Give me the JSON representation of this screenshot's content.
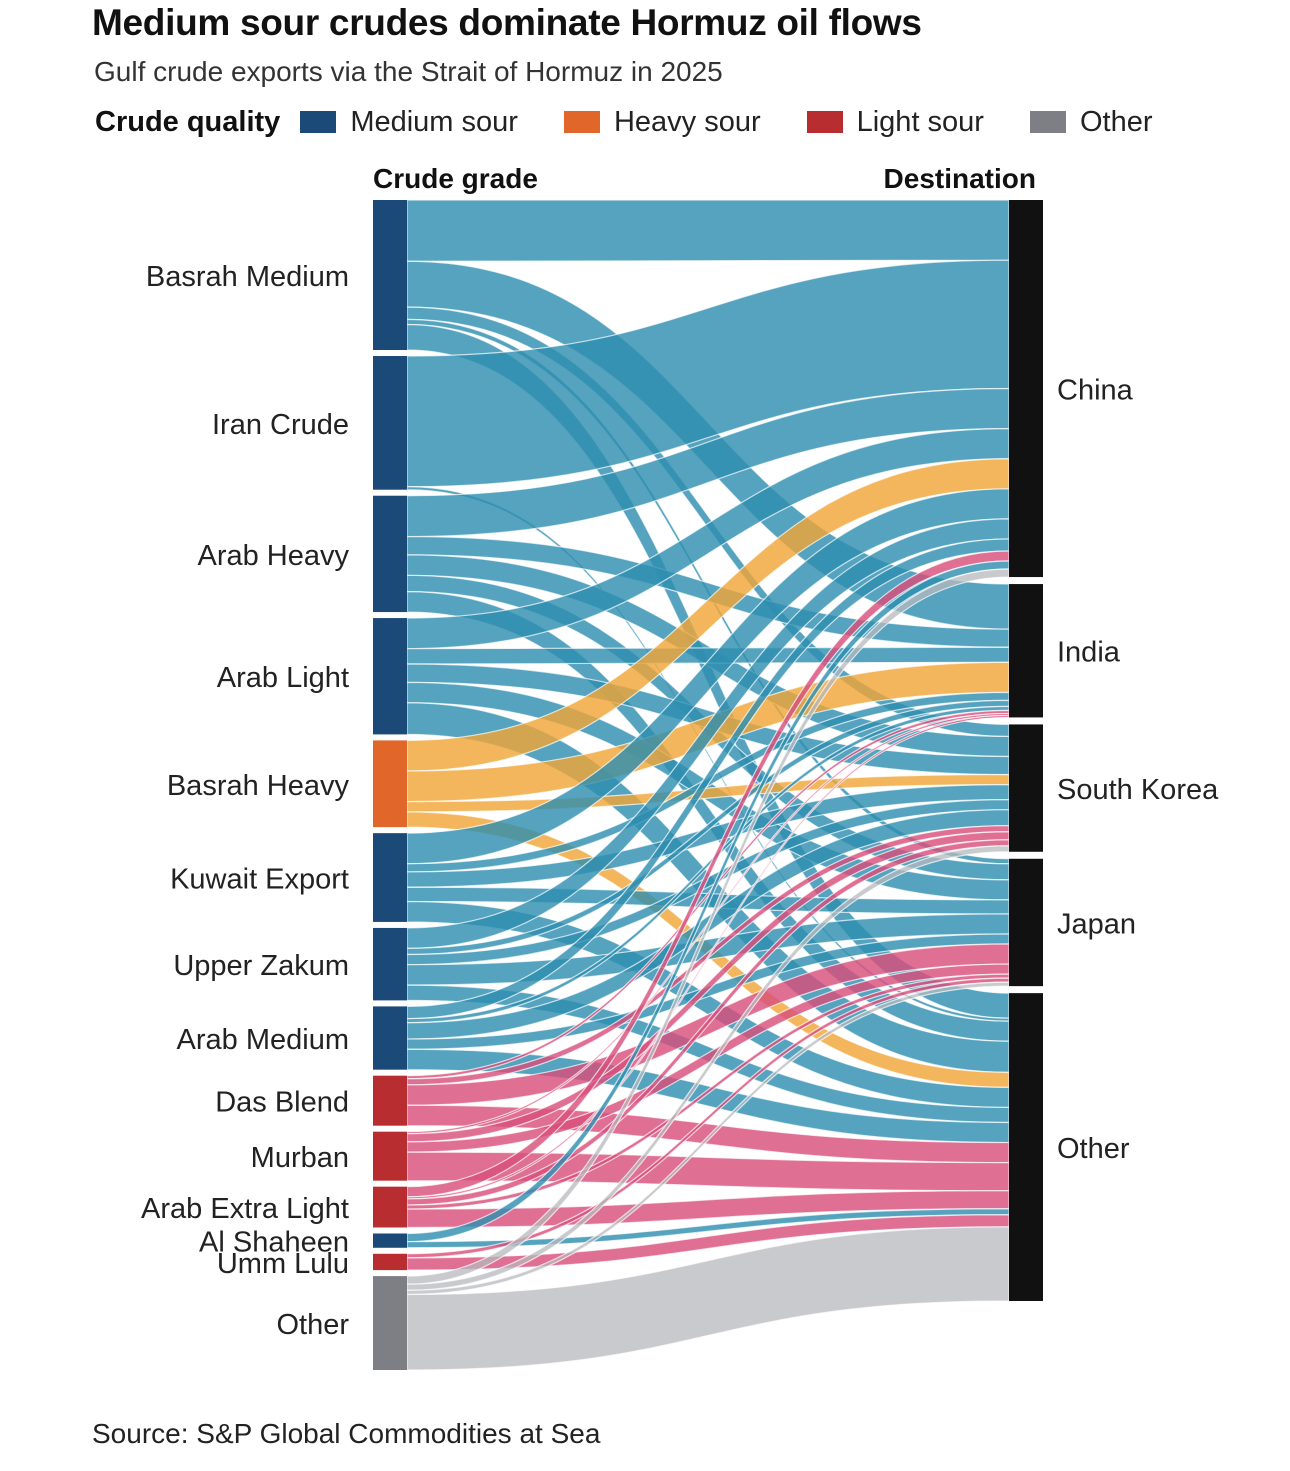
{
  "title": "Medium sour crudes dominate Hormuz oil flows",
  "subtitle": "Gulf crude exports via the Strait of Hormuz in 2025",
  "legend": {
    "title": "Crude quality",
    "items": [
      {
        "label": "Medium sour",
        "color": "#1c4a78"
      },
      {
        "label": "Heavy sour",
        "color": "#e0662a"
      },
      {
        "label": "Light sour",
        "color": "#b82e30"
      },
      {
        "label": "Other",
        "color": "#7d7f85"
      }
    ]
  },
  "source": "Source: S&P Global Commodities at Sea",
  "chart_data": {
    "type": "sankey",
    "left_header": "Crude grade",
    "right_header": "Destination",
    "quality_colors": {
      "medium_sour": {
        "node": "#1c4a78",
        "link": "#2f8fb0"
      },
      "heavy_sour": {
        "node": "#e0662a",
        "link": "#f0a638"
      },
      "light_sour": {
        "node": "#b82e30",
        "link": "#d94f7c"
      },
      "other": {
        "node": "#7d7f85",
        "link": "#b7b8bc"
      }
    },
    "sources": [
      {
        "name": "Basrah Medium",
        "quality": "medium_sour",
        "value": 147
      },
      {
        "name": "Iran Crude",
        "quality": "medium_sour",
        "value": 131
      },
      {
        "name": "Arab Heavy",
        "quality": "medium_sour",
        "value": 114
      },
      {
        "name": "Arab Light",
        "quality": "medium_sour",
        "value": 114
      },
      {
        "name": "Basrah Heavy",
        "quality": "heavy_sour",
        "value": 85
      },
      {
        "name": "Kuwait Export",
        "quality": "medium_sour",
        "value": 87
      },
      {
        "name": "Upper Zakum",
        "quality": "medium_sour",
        "value": 71
      },
      {
        "name": "Arab Medium",
        "quality": "medium_sour",
        "value": 62
      },
      {
        "name": "Das Blend",
        "quality": "light_sour",
        "value": 49
      },
      {
        "name": "Murban",
        "quality": "light_sour",
        "value": 48
      },
      {
        "name": "Arab Extra Light",
        "quality": "light_sour",
        "value": 40
      },
      {
        "name": "Al Shaheen",
        "quality": "medium_sour",
        "value": 14
      },
      {
        "name": "Umm Lulu",
        "quality": "light_sour",
        "value": 16
      },
      {
        "name": "Other",
        "quality": "other",
        "value": 92
      }
    ],
    "targets": [
      {
        "name": "China",
        "value": 376
      },
      {
        "name": "India",
        "value": 133
      },
      {
        "name": "South Korea",
        "value": 127
      },
      {
        "name": "Japan",
        "value": 127
      },
      {
        "name": "Other",
        "value": 307
      }
    ],
    "flows": [
      {
        "source": "Basrah Medium",
        "target": "China",
        "value": 60
      },
      {
        "source": "Basrah Medium",
        "target": "India",
        "value": 45
      },
      {
        "source": "Basrah Medium",
        "target": "South Korea",
        "value": 12
      },
      {
        "source": "Basrah Medium",
        "target": "Japan",
        "value": 5
      },
      {
        "source": "Basrah Medium",
        "target": "Other",
        "value": 25
      },
      {
        "source": "Iran Crude",
        "target": "China",
        "value": 128
      },
      {
        "source": "Iran Crude",
        "target": "Other",
        "value": 3
      },
      {
        "source": "Arab Heavy",
        "target": "China",
        "value": 40
      },
      {
        "source": "Arab Heavy",
        "target": "India",
        "value": 18
      },
      {
        "source": "Arab Heavy",
        "target": "South Korea",
        "value": 20
      },
      {
        "source": "Arab Heavy",
        "target": "Japan",
        "value": 16
      },
      {
        "source": "Arab Heavy",
        "target": "Other",
        "value": 20
      },
      {
        "source": "Arab Light",
        "target": "China",
        "value": 30
      },
      {
        "source": "Arab Light",
        "target": "India",
        "value": 15
      },
      {
        "source": "Arab Light",
        "target": "South Korea",
        "value": 18
      },
      {
        "source": "Arab Light",
        "target": "Japan",
        "value": 20
      },
      {
        "source": "Arab Light",
        "target": "Other",
        "value": 31
      },
      {
        "source": "Basrah Heavy",
        "target": "China",
        "value": 30
      },
      {
        "source": "Basrah Heavy",
        "target": "India",
        "value": 30
      },
      {
        "source": "Basrah Heavy",
        "target": "South Korea",
        "value": 10
      },
      {
        "source": "Basrah Heavy",
        "target": "Other",
        "value": 15
      },
      {
        "source": "Kuwait Export",
        "target": "China",
        "value": 30
      },
      {
        "source": "Kuwait Export",
        "target": "India",
        "value": 8
      },
      {
        "source": "Kuwait Export",
        "target": "South Korea",
        "value": 15
      },
      {
        "source": "Kuwait Export",
        "target": "Japan",
        "value": 14
      },
      {
        "source": "Kuwait Export",
        "target": "Other",
        "value": 20
      },
      {
        "source": "Upper Zakum",
        "target": "China",
        "value": 20
      },
      {
        "source": "Upper Zakum",
        "target": "India",
        "value": 6
      },
      {
        "source": "Upper Zakum",
        "target": "South Korea",
        "value": 10
      },
      {
        "source": "Upper Zakum",
        "target": "Japan",
        "value": 20
      },
      {
        "source": "Upper Zakum",
        "target": "Other",
        "value": 15
      },
      {
        "source": "Arab Medium",
        "target": "China",
        "value": 12
      },
      {
        "source": "Arab Medium",
        "target": "India",
        "value": 4
      },
      {
        "source": "Arab Medium",
        "target": "South Korea",
        "value": 16
      },
      {
        "source": "Arab Medium",
        "target": "Japan",
        "value": 10
      },
      {
        "source": "Arab Medium",
        "target": "Other",
        "value": 20
      },
      {
        "source": "Das Blend",
        "target": "India",
        "value": 3
      },
      {
        "source": "Das Blend",
        "target": "South Korea",
        "value": 6
      },
      {
        "source": "Das Blend",
        "target": "Japan",
        "value": 20
      },
      {
        "source": "Das Blend",
        "target": "Other",
        "value": 20
      },
      {
        "source": "Murban",
        "target": "India",
        "value": 2
      },
      {
        "source": "Murban",
        "target": "South Korea",
        "value": 8
      },
      {
        "source": "Murban",
        "target": "Japan",
        "value": 10
      },
      {
        "source": "Murban",
        "target": "Other",
        "value": 28
      },
      {
        "source": "Arab Extra Light",
        "target": "China",
        "value": 10
      },
      {
        "source": "Arab Extra Light",
        "target": "India",
        "value": 2
      },
      {
        "source": "Arab Extra Light",
        "target": "South Korea",
        "value": 6
      },
      {
        "source": "Arab Extra Light",
        "target": "Japan",
        "value": 4
      },
      {
        "source": "Arab Extra Light",
        "target": "Other",
        "value": 18
      },
      {
        "source": "Al Shaheen",
        "target": "China",
        "value": 8
      },
      {
        "source": "Al Shaheen",
        "target": "Other",
        "value": 6
      },
      {
        "source": "Umm Lulu",
        "target": "Japan",
        "value": 4
      },
      {
        "source": "Umm Lulu",
        "target": "Other",
        "value": 12
      },
      {
        "source": "Other",
        "target": "China",
        "value": 8
      },
      {
        "source": "Other",
        "target": "South Korea",
        "value": 6
      },
      {
        "source": "Other",
        "target": "Japan",
        "value": 4
      },
      {
        "source": "Other",
        "target": "Other",
        "value": 74
      }
    ]
  }
}
